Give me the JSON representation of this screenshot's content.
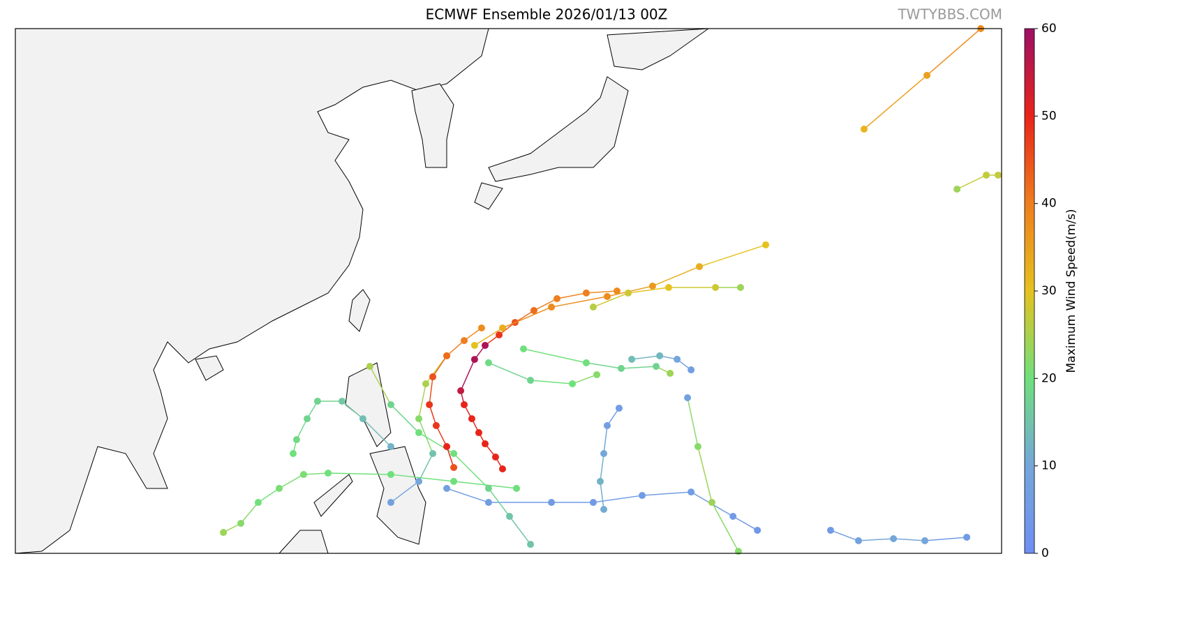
{
  "title": "ECMWF Ensemble 2026/01/13 00Z",
  "watermark": "TWTYBBS.COM",
  "map": {
    "lonlim": [
      94.6,
      169.4
    ],
    "latlim": [
      3,
      46.7
    ],
    "tracks": [
      {
        "lon": [
          158.97,
          163.74,
          167.82
        ],
        "lat": [
          38.33,
          42.81,
          46.7
        ],
        "wind": [
          32,
          35,
          38
        ]
      },
      {
        "lon": [
          166.02,
          168.24,
          169.14
        ],
        "lat": [
          33.33,
          34.5,
          34.5
        ],
        "wind": [
          24,
          27,
          27
        ]
      },
      {
        "lon": [
          131.55,
          131.02,
          130.23,
          129.75,
          129.22,
          128.64,
          128.38,
          129.43,
          130.23,
          131.29,
          132.5,
          133.93,
          135.68,
          137.9,
          140.23
        ],
        "lat": [
          10.03,
          11.02,
          12.12,
          13.05,
          14.21,
          15.38,
          16.54,
          19.15,
          20.32,
          21.19,
          22.23,
          23.22,
          24.21,
          24.68,
          24.85
        ],
        "wind": [
          50,
          50,
          50,
          50,
          50,
          50,
          55,
          58,
          58,
          48,
          45,
          42,
          40,
          40,
          38
        ]
      },
      {
        "lon": [
          129.43,
          131.55,
          135.26,
          139.49,
          142.93,
          146.48,
          151.51
        ],
        "lat": [
          20.32,
          21.77,
          23.51,
          24.39,
          25.26,
          26.88,
          28.69
        ],
        "wind": [
          30,
          33,
          38,
          38,
          36,
          33,
          30
        ]
      },
      {
        "lon": [
          138.43,
          141.08,
          144.15,
          147.7,
          149.6
        ],
        "lat": [
          23.51,
          24.68,
          25.14,
          25.14,
          25.14
        ],
        "wind": [
          26,
          28,
          30,
          28,
          24
        ]
      },
      {
        "lon": [
          132.61,
          127.85,
          123.08,
          118.32,
          116.46,
          114.61,
          113.02,
          111.7,
          110.38
        ],
        "lat": [
          8.41,
          8.99,
          9.57,
          9.68,
          9.57,
          8.41,
          7.24,
          5.5,
          4.74
        ],
        "wind": [
          20,
          20,
          20,
          20,
          21,
          21,
          20,
          22,
          24
        ]
      },
      {
        "lon": [
          123.08,
          120.96,
          119.38,
          117.52,
          116.73,
          115.93,
          115.67
        ],
        "lat": [
          11.89,
          14.21,
          15.67,
          15.67,
          14.21,
          12.47,
          11.31
        ],
        "wind": [
          12,
          14,
          16,
          18,
          18,
          19,
          20
        ]
      },
      {
        "lon": [
          127.32,
          130.49,
          135.26,
          138.43,
          142.14,
          145.85,
          149.03,
          150.88
        ],
        "lat": [
          8.41,
          7.24,
          7.24,
          7.24,
          7.82,
          8.11,
          6.08,
          4.92
        ],
        "wind": [
          8,
          6,
          5,
          5,
          6,
          6,
          5,
          4
        ]
      },
      {
        "lon": [
          156.43,
          158.55,
          161.2,
          163.58,
          166.76
        ],
        "lat": [
          4.92,
          4.05,
          4.22,
          4.05,
          4.34
        ],
        "wind": [
          5,
          8,
          10,
          10,
          5
        ]
      },
      {
        "lon": [
          145.58,
          146.37,
          147.43,
          149.44
        ],
        "lat": [
          15.96,
          11.89,
          7.24,
          3.17
        ],
        "wind": [
          8,
          22,
          24,
          22
        ]
      },
      {
        "lon": [
          140.39,
          139.49,
          139.23,
          138.96,
          139.23
        ],
        "lat": [
          15.09,
          13.64,
          11.31,
          8.99,
          6.66
        ],
        "wind": [
          6,
          7,
          10,
          12,
          11
        ]
      },
      {
        "lon": [
          130.49,
          133.67,
          136.85,
          138.7
        ],
        "lat": [
          18.87,
          17.41,
          17.12,
          17.88
        ],
        "wind": [
          19,
          18,
          20,
          22
        ]
      },
      {
        "lon": [
          133.14,
          137.9,
          140.55,
          143.2,
          144.26
        ],
        "lat": [
          20.03,
          18.87,
          18.4,
          18.57,
          17.99
        ],
        "wind": [
          20,
          20,
          18,
          18,
          24
        ]
      },
      {
        "lon": [
          141.35,
          143.47,
          144.79,
          145.85
        ],
        "lat": [
          19.16,
          19.45,
          19.16,
          18.28
        ],
        "wind": [
          14,
          13,
          10,
          7
        ]
      },
      {
        "lon": [
          123.08,
          125.2,
          126.26,
          125.2,
          125.73,
          127.32
        ],
        "lat": [
          7.24,
          8.99,
          11.31,
          14.21,
          17.12,
          19.45
        ],
        "wind": [
          8,
          10,
          15,
          22,
          25,
          28
        ]
      },
      {
        "lon": [
          133.67,
          132.08,
          130.49,
          127.85,
          125.2,
          123.08,
          121.49
        ],
        "lat": [
          3.75,
          6.08,
          8.41,
          11.31,
          13.05,
          15.38,
          18.57
        ],
        "wind": [
          15,
          15,
          18,
          20,
          20,
          18,
          25
        ]
      },
      {
        "lon": [
          127.85,
          127.32,
          126.52,
          126.0,
          126.26,
          127.32,
          128.64,
          129.96
        ],
        "lat": [
          10.15,
          11.89,
          13.64,
          15.38,
          17.7,
          19.45,
          20.72,
          21.77
        ],
        "wind": [
          45,
          50,
          48,
          48,
          45,
          42,
          40,
          38
        ]
      }
    ]
  },
  "colorbar": {
    "label": "Maximum Wind Speed(m/s)",
    "clim": [
      0,
      60
    ],
    "ticks": [
      0,
      10,
      20,
      30,
      40,
      50,
      60
    ],
    "colors": [
      "#6f8ff2",
      "#74a6da",
      "#6fe07c",
      "#e5c21f",
      "#ef7e1e",
      "#e8241a",
      "#9e0f66"
    ]
  }
}
